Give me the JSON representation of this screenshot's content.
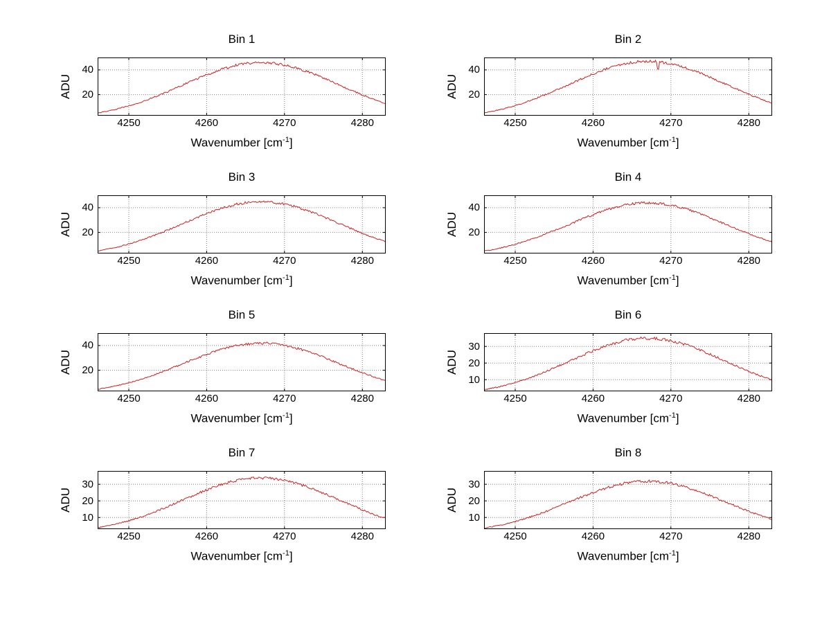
{
  "figure": {
    "background": "#ffffff",
    "curve_color": "#cc2020",
    "grid_color": "#808080",
    "axis_color": "#000000"
  },
  "axis": {
    "ylabel": "ADU",
    "xlabel_main": "Wavenumber [cm",
    "xlabel_sup": "-1",
    "xlabel_close": "]"
  },
  "chart_data": [
    {
      "type": "line",
      "title": "Bin 1",
      "xlabel": "Wavenumber [cm^-1]",
      "ylabel": "ADU",
      "xlim": [
        4246,
        4283
      ],
      "ylim": [
        3,
        50
      ],
      "xticks": [
        4250,
        4260,
        4270,
        4280
      ],
      "yticks": [
        20,
        40
      ],
      "grid": true,
      "legend": false,
      "x": [
        4246,
        4248,
        4250,
        4252,
        4254,
        4256,
        4258,
        4260,
        4262,
        4264,
        4266,
        4268,
        4270,
        4272,
        4274,
        4276,
        4278,
        4280,
        4282,
        4283
      ],
      "y": [
        5.1,
        7.6,
        10.8,
        14.9,
        19.8,
        25.1,
        30.7,
        36.0,
        40.6,
        44.0,
        45.8,
        45.8,
        44.0,
        40.6,
        36.0,
        30.7,
        25.1,
        19.8,
        14.9,
        12.8
      ]
    },
    {
      "type": "line",
      "title": "Bin 2",
      "xlabel": "Wavenumber [cm^-1]",
      "ylabel": "ADU",
      "xlim": [
        4246,
        4283
      ],
      "ylim": [
        3,
        50
      ],
      "xticks": [
        4250,
        4260,
        4270,
        4280
      ],
      "yticks": [
        20,
        40
      ],
      "grid": true,
      "legend": false,
      "dip": {
        "x": 4268.4,
        "y": 40.5
      },
      "x": [
        4246,
        4248,
        4250,
        4252,
        4254,
        4256,
        4258,
        4260,
        4262,
        4264,
        4266,
        4268,
        4270,
        4272,
        4274,
        4276,
        4278,
        4280,
        4282,
        4283
      ],
      "y": [
        5.2,
        7.7,
        11.1,
        15.3,
        20.2,
        25.7,
        31.3,
        36.8,
        41.5,
        44.9,
        46.8,
        46.8,
        44.9,
        41.5,
        36.8,
        31.3,
        25.7,
        20.2,
        15.3,
        13.1
      ]
    },
    {
      "type": "line",
      "title": "Bin 3",
      "xlabel": "Wavenumber [cm^-1]",
      "ylabel": "ADU",
      "xlim": [
        4246,
        4283
      ],
      "ylim": [
        3,
        50
      ],
      "xticks": [
        4250,
        4260,
        4270,
        4280
      ],
      "yticks": [
        20,
        40
      ],
      "grid": true,
      "legend": false,
      "x": [
        4246,
        4248,
        4250,
        4252,
        4254,
        4256,
        4258,
        4260,
        4262,
        4264,
        4266,
        4268,
        4270,
        4272,
        4274,
        4276,
        4278,
        4280,
        4282,
        4283
      ],
      "y": [
        5.0,
        7.4,
        10.6,
        14.6,
        19.3,
        24.6,
        30.0,
        35.2,
        39.7,
        43.0,
        44.8,
        44.8,
        43.0,
        39.7,
        35.2,
        30.0,
        24.6,
        19.3,
        14.6,
        12.5
      ]
    },
    {
      "type": "line",
      "title": "Bin 4",
      "xlabel": "Wavenumber [cm^-1]",
      "ylabel": "ADU",
      "xlim": [
        4246,
        4283
      ],
      "ylim": [
        3,
        50
      ],
      "xticks": [
        4250,
        4260,
        4270,
        4280
      ],
      "yticks": [
        20,
        40
      ],
      "grid": true,
      "legend": false,
      "x": [
        4246,
        4248,
        4250,
        4252,
        4254,
        4256,
        4258,
        4260,
        4262,
        4264,
        4266,
        4268,
        4270,
        4272,
        4274,
        4276,
        4278,
        4280,
        4282,
        4283
      ],
      "y": [
        4.9,
        7.2,
        10.4,
        14.3,
        18.9,
        24.0,
        29.3,
        34.4,
        38.8,
        42.1,
        43.8,
        43.8,
        42.1,
        38.8,
        34.4,
        29.3,
        24.0,
        18.9,
        14.3,
        12.2
      ]
    },
    {
      "type": "line",
      "title": "Bin 5",
      "xlabel": "Wavenumber [cm^-1]",
      "ylabel": "ADU",
      "xlim": [
        4246,
        4283
      ],
      "ylim": [
        3,
        50
      ],
      "xticks": [
        4250,
        4260,
        4270,
        4280
      ],
      "yticks": [
        20,
        40
      ],
      "grid": true,
      "legend": false,
      "x": [
        4246,
        4248,
        4250,
        4252,
        4254,
        4256,
        4258,
        4260,
        4262,
        4264,
        4266,
        4268,
        4270,
        4272,
        4274,
        4276,
        4278,
        4280,
        4282,
        4283
      ],
      "y": [
        4.6,
        6.9,
        9.9,
        13.6,
        18.0,
        22.9,
        28.0,
        32.9,
        37.1,
        40.2,
        41.8,
        41.8,
        40.2,
        37.1,
        32.9,
        28.0,
        22.9,
        18.0,
        13.6,
        11.7
      ]
    },
    {
      "type": "line",
      "title": "Bin 6",
      "xlabel": "Wavenumber [cm^-1]",
      "ylabel": "ADU",
      "xlim": [
        4246,
        4283
      ],
      "ylim": [
        3,
        38
      ],
      "xticks": [
        4250,
        4260,
        4270,
        4280
      ],
      "yticks": [
        10,
        20,
        30
      ],
      "grid": true,
      "legend": false,
      "x": [
        4246,
        4248,
        4250,
        4252,
        4254,
        4256,
        4258,
        4260,
        4262,
        4264,
        4266,
        4268,
        4270,
        4272,
        4274,
        4276,
        4278,
        4280,
        4282,
        4283
      ],
      "y": [
        3.9,
        5.8,
        8.2,
        11.4,
        15.0,
        19.1,
        23.3,
        27.4,
        30.9,
        33.5,
        34.8,
        34.8,
        33.5,
        30.9,
        27.4,
        23.3,
        19.1,
        15.0,
        11.4,
        9.7
      ]
    },
    {
      "type": "line",
      "title": "Bin 7",
      "xlabel": "Wavenumber [cm^-1]",
      "ylabel": "ADU",
      "xlim": [
        4246,
        4283
      ],
      "ylim": [
        3,
        38
      ],
      "xticks": [
        4250,
        4260,
        4270,
        4280
      ],
      "yticks": [
        10,
        20,
        30
      ],
      "grid": true,
      "legend": false,
      "x": [
        4246,
        4248,
        4250,
        4252,
        4254,
        4256,
        4258,
        4260,
        4262,
        4264,
        4266,
        4268,
        4270,
        4272,
        4274,
        4276,
        4278,
        4280,
        4282,
        4283
      ],
      "y": [
        3.8,
        5.6,
        8.0,
        10.9,
        14.6,
        18.6,
        22.7,
        26.6,
        30.0,
        32.5,
        33.8,
        33.8,
        32.5,
        30.0,
        26.6,
        22.7,
        18.6,
        14.6,
        10.9,
        9.5
      ]
    },
    {
      "type": "line",
      "title": "Bin 8",
      "xlabel": "Wavenumber [cm^-1]",
      "ylabel": "ADU",
      "xlim": [
        4246,
        4283
      ],
      "ylim": [
        3,
        38
      ],
      "xticks": [
        4250,
        4260,
        4270,
        4280
      ],
      "yticks": [
        10,
        20,
        30
      ],
      "grid": true,
      "legend": false,
      "x": [
        4246,
        4248,
        4250,
        4252,
        4254,
        4256,
        4258,
        4260,
        4262,
        4264,
        4266,
        4268,
        4270,
        4272,
        4274,
        4276,
        4278,
        4280,
        4282,
        4283
      ],
      "y": [
        3.5,
        5.3,
        7.5,
        10.4,
        13.7,
        17.5,
        21.3,
        25.0,
        28.2,
        30.6,
        31.8,
        31.8,
        30.6,
        28.2,
        25.0,
        21.3,
        17.5,
        13.7,
        10.4,
        8.9
      ]
    }
  ]
}
